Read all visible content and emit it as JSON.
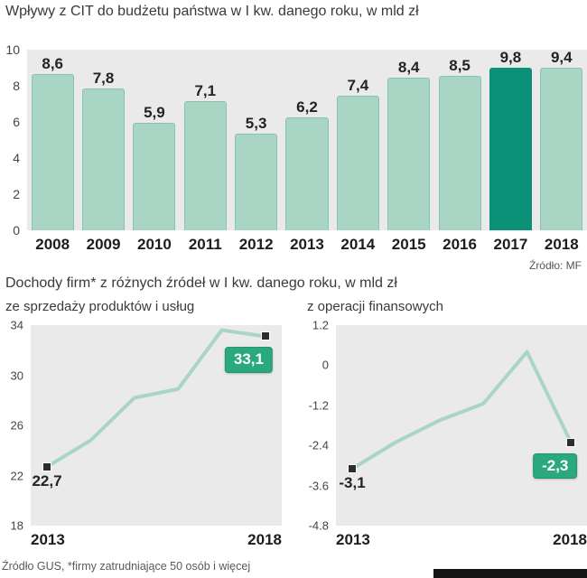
{
  "page": {
    "title": "Wpływy z CIT do budżetu państwa w I kw. danego roku, w mld zł",
    "source_top": "Źródło: MF",
    "subtitle": "Dochody firm* z różnych źródeł w I kw. danego roku, w mld zł",
    "footer": "Źródło GUS, *firmy zatrudniające 50 osób i więcej"
  },
  "colors": {
    "bar": "#a8d5c4",
    "bar_highlight": "#0a9178",
    "line": "#a8d5c4",
    "badge": "#2aa87e",
    "plot_background": "#eaeaea"
  },
  "chart_data": [
    {
      "type": "bar",
      "title": "Wpływy z CIT do budżetu państwa w I kw. danego roku, w mld zł",
      "categories": [
        "2008",
        "2009",
        "2010",
        "2011",
        "2012",
        "2013",
        "2014",
        "2015",
        "2016",
        "2017",
        "2018"
      ],
      "values": [
        8.6,
        7.8,
        5.9,
        7.1,
        5.3,
        6.2,
        7.4,
        8.4,
        8.5,
        9.8,
        9.4
      ],
      "labels": [
        "8,6",
        "7,8",
        "5,9",
        "7,1",
        "5,3",
        "6,2",
        "7,4",
        "8,4",
        "8,5",
        "9,8",
        "9,4"
      ],
      "highlight_index": 9,
      "ylim": [
        0,
        10
      ],
      "yticks": [
        "10",
        "8",
        "6",
        "4",
        "2",
        "0"
      ],
      "source": "Źródło: MF",
      "legend": "none",
      "grid": false
    },
    {
      "type": "line",
      "title": "ze sprzedaży produktów i usług",
      "x": [
        2013,
        2014,
        2015,
        2016,
        2017,
        2018
      ],
      "values": [
        22.7,
        24.8,
        28.2,
        28.9,
        33.6,
        33.1
      ],
      "ylim": [
        18,
        34
      ],
      "yticks": [
        "34",
        "30",
        "26",
        "22",
        "18"
      ],
      "start_label": "22,7",
      "end_label": "33,1",
      "x_labels": [
        "2013",
        "2018"
      ],
      "legend": "none",
      "grid": false
    },
    {
      "type": "line",
      "title": "z operacji finansowych",
      "x": [
        2013,
        2014,
        2015,
        2016,
        2017,
        2018
      ],
      "values": [
        -3.1,
        -2.3,
        -1.65,
        -1.15,
        0.4,
        -2.3
      ],
      "ylim": [
        -4.8,
        1.2
      ],
      "yticks": [
        "1.2",
        "0",
        "-1.2",
        "-2.4",
        "-3.6",
        "-4.8"
      ],
      "start_label": "-3,1",
      "end_label": "-2,3",
      "x_labels": [
        "2013",
        "2018"
      ],
      "legend": "none",
      "grid": false
    }
  ]
}
